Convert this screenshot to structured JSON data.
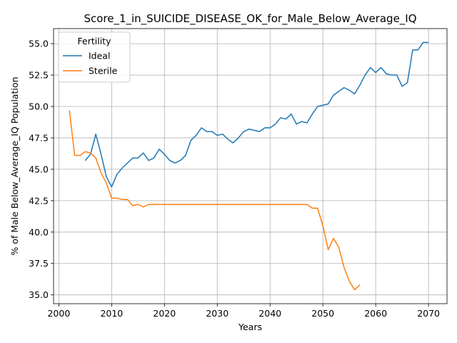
{
  "chart_data": {
    "type": "line",
    "title": "Score_1_in_SUICIDE_DISEASE_OK_for_Male_Below_Average_IQ",
    "xlabel": "Years",
    "ylabel": "% of Male Below_Average_IQ Population",
    "xlim": [
      1999,
      2073.5
    ],
    "ylim": [
      34.3,
      56.2
    ],
    "xticks": [
      2000,
      2010,
      2020,
      2030,
      2040,
      2050,
      2060,
      2070
    ],
    "yticks": [
      35.0,
      37.5,
      40.0,
      42.5,
      45.0,
      47.5,
      50.0,
      52.5,
      55.0
    ],
    "ytick_labels": [
      "35.0",
      "37.5",
      "40.0",
      "42.5",
      "45.0",
      "47.5",
      "50.0",
      "52.5",
      "55.0"
    ],
    "grid": true,
    "legend": {
      "title": "Fertility",
      "placement": "top-left"
    },
    "series": [
      {
        "name": "Ideal",
        "color": "#1f77b4",
        "x": [
          2005,
          2006,
          2007,
          2008,
          2009,
          2010,
          2011,
          2012,
          2013,
          2014,
          2015,
          2016,
          2017,
          2018,
          2019,
          2020,
          2021,
          2022,
          2023,
          2024,
          2025,
          2026,
          2027,
          2028,
          2029,
          2030,
          2031,
          2032,
          2033,
          2034,
          2035,
          2036,
          2037,
          2038,
          2039,
          2040,
          2041,
          2042,
          2043,
          2044,
          2045,
          2046,
          2047,
          2048,
          2049,
          2050,
          2051,
          2052,
          2053,
          2054,
          2055,
          2056,
          2057,
          2058,
          2059,
          2060,
          2061,
          2062,
          2063,
          2064,
          2065,
          2066,
          2067,
          2068,
          2069,
          2070
        ],
        "y": [
          45.7,
          46.2,
          47.8,
          46.2,
          44.4,
          43.6,
          44.6,
          45.1,
          45.5,
          45.9,
          45.9,
          46.3,
          45.7,
          45.9,
          46.6,
          46.2,
          45.7,
          45.5,
          45.7,
          46.1,
          47.3,
          47.7,
          48.3,
          48.0,
          48.0,
          47.7,
          47.8,
          47.4,
          47.1,
          47.5,
          48.0,
          48.2,
          48.1,
          48.0,
          48.3,
          48.3,
          48.6,
          49.1,
          49.0,
          49.4,
          48.6,
          48.8,
          48.7,
          49.4,
          50.0,
          50.1,
          50.2,
          50.9,
          51.2,
          51.5,
          51.3,
          51.0,
          51.7,
          52.5,
          53.1,
          52.7,
          53.1,
          52.6,
          52.5,
          52.5,
          51.6,
          51.9,
          54.5,
          54.5,
          55.1,
          55.1
        ]
      },
      {
        "name": "Sterile",
        "color": "#ff7f0e",
        "x": [
          2002,
          2003,
          2004,
          2005,
          2006,
          2007,
          2008,
          2009,
          2010,
          2011,
          2012,
          2013,
          2014,
          2015,
          2016,
          2017,
          2018,
          2019,
          2020,
          2021,
          2022,
          2023,
          2024,
          2025,
          2026,
          2027,
          2028,
          2029,
          2030,
          2031,
          2032,
          2033,
          2034,
          2035,
          2036,
          2037,
          2038,
          2039,
          2040,
          2041,
          2042,
          2043,
          2044,
          2045,
          2046,
          2047,
          2048,
          2049,
          2050,
          2051,
          2052,
          2053,
          2054,
          2055,
          2056,
          2057
        ],
        "y": [
          49.7,
          46.1,
          46.1,
          46.4,
          46.3,
          45.9,
          44.7,
          43.9,
          42.7,
          42.7,
          42.6,
          42.6,
          42.1,
          42.2,
          42.0,
          42.2,
          42.2,
          42.2,
          42.2,
          42.2,
          42.2,
          42.2,
          42.2,
          42.2,
          42.2,
          42.2,
          42.2,
          42.2,
          42.2,
          42.2,
          42.2,
          42.2,
          42.2,
          42.2,
          42.2,
          42.2,
          42.2,
          42.2,
          42.2,
          42.2,
          42.2,
          42.2,
          42.2,
          42.2,
          42.2,
          42.2,
          41.9,
          41.9,
          40.5,
          38.6,
          39.5,
          38.8,
          37.2,
          36.1,
          35.4,
          35.8
        ]
      }
    ]
  }
}
